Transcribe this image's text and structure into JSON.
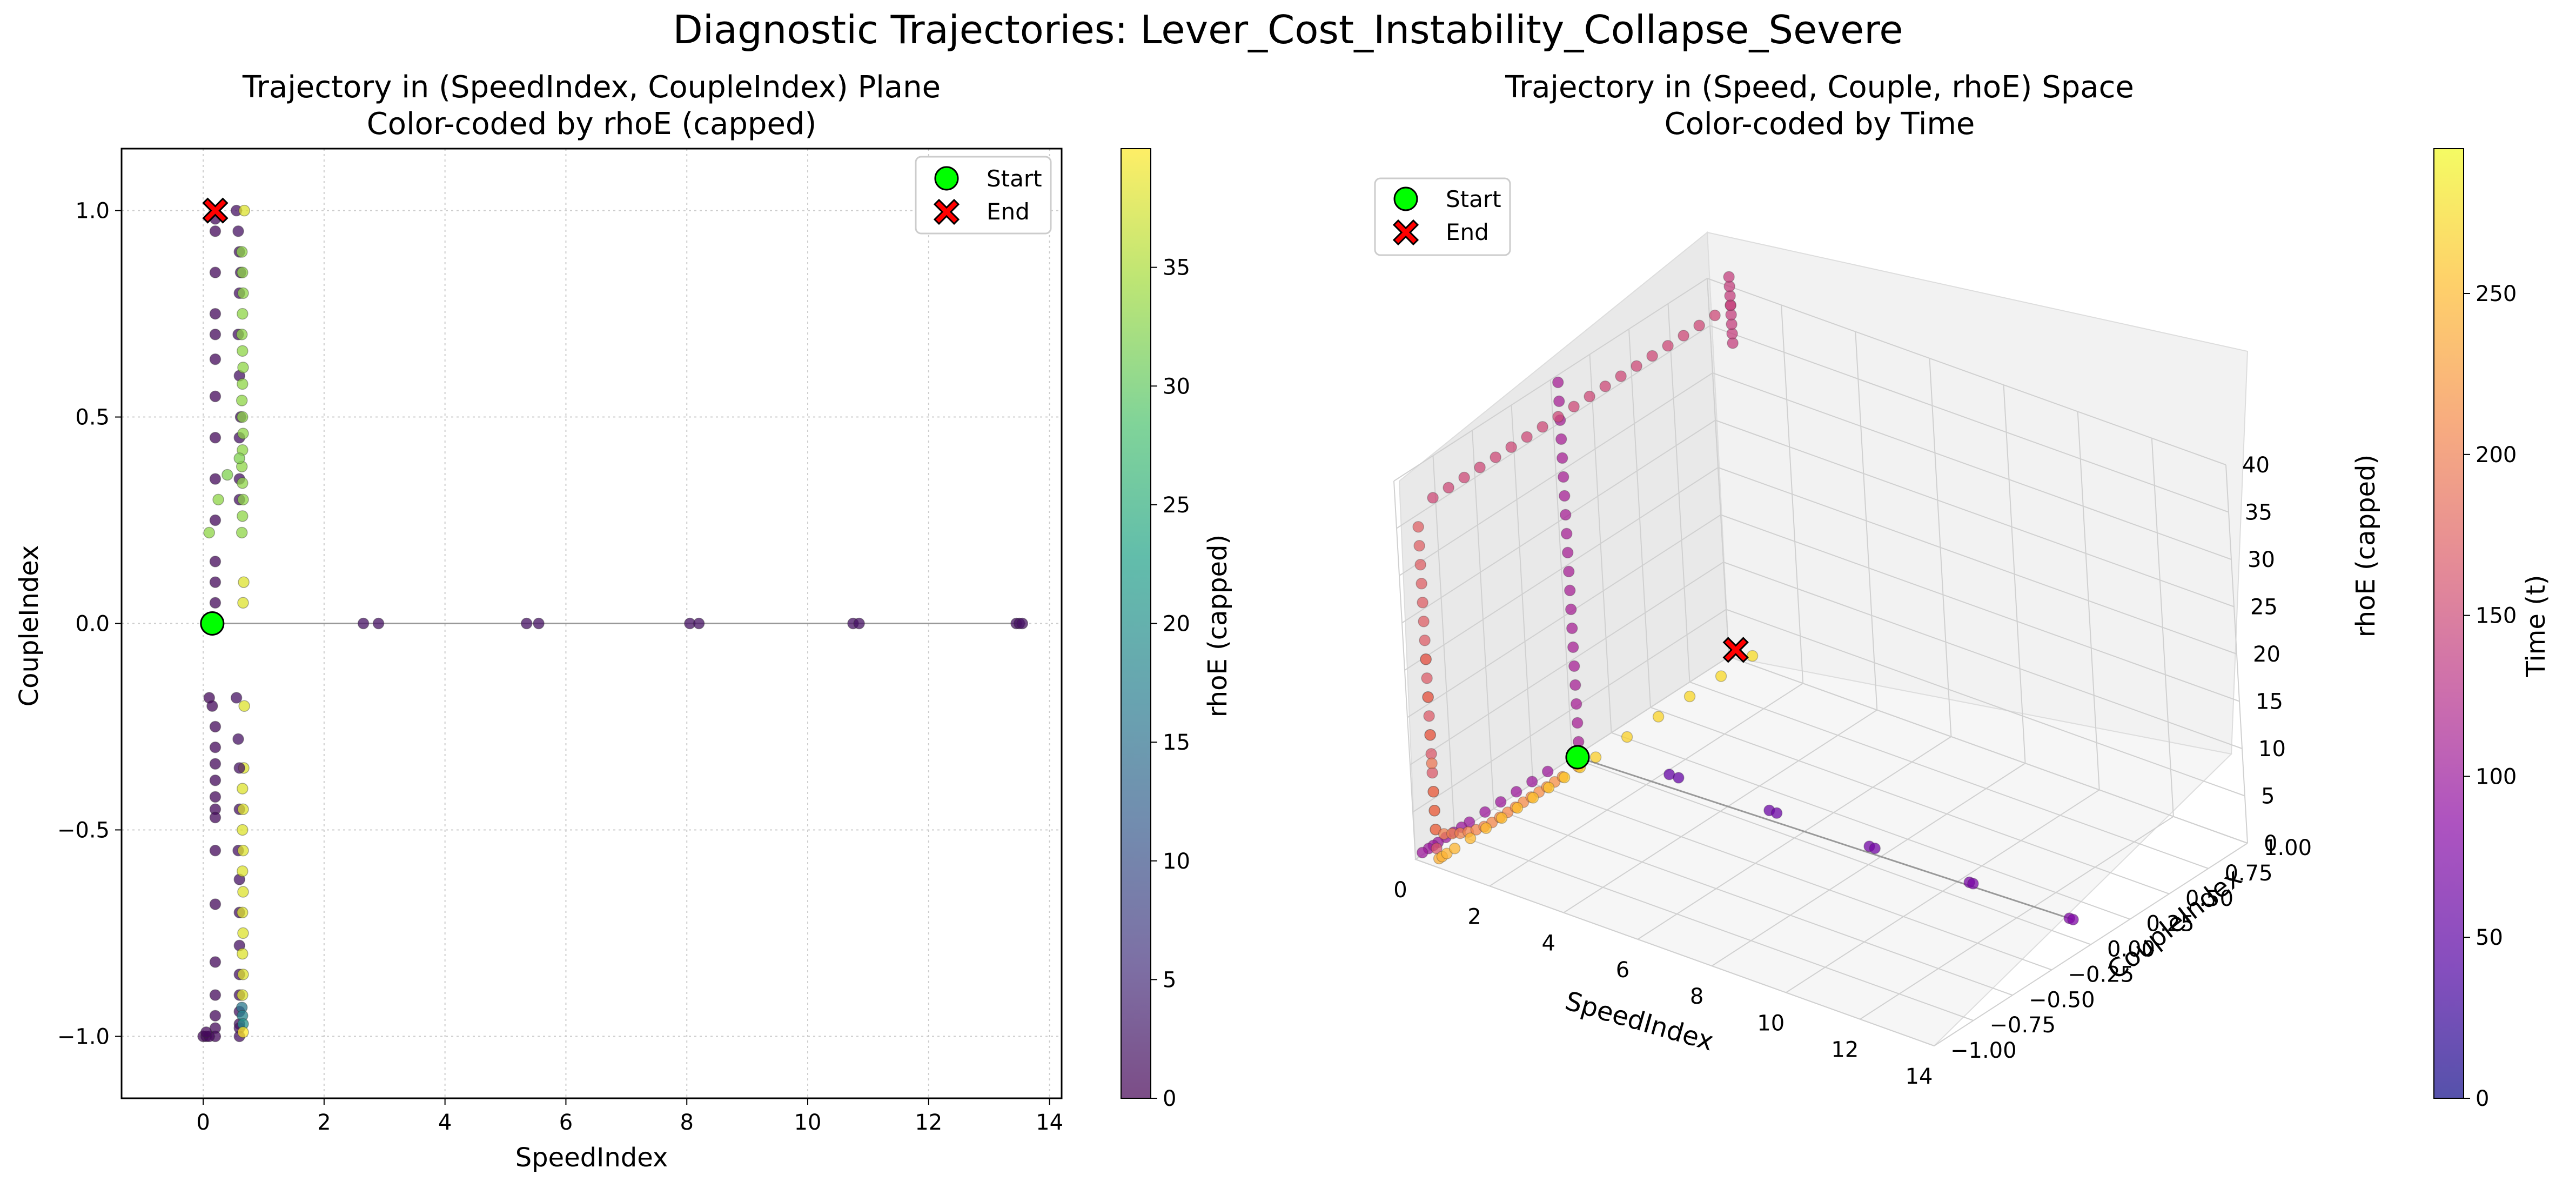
{
  "suptitle": "Diagnostic Trajectories: Lever_Cost_Instability_Collapse_Severe",
  "chart_data": [
    {
      "type": "scatter",
      "title": "Trajectory in (SpeedIndex, CoupleIndex) Plane",
      "subtitle": "Color-coded by rhoE (capped)",
      "xlabel": "SpeedIndex",
      "ylabel": "CoupleIndex",
      "xlim": [
        -1.35,
        14.2
      ],
      "ylim": [
        -1.15,
        1.15
      ],
      "xticks": [
        0,
        2,
        4,
        6,
        8,
        10,
        12,
        14
      ],
      "yticks": [
        -1.0,
        -0.5,
        0.0,
        0.5,
        1.0
      ],
      "grid": true,
      "colormap": "viridis",
      "colorbar": {
        "label": "rhoE (capped)",
        "range": [
          0,
          40
        ],
        "ticks": [
          0,
          5,
          10,
          15,
          20,
          25,
          30,
          35
        ]
      },
      "legend": {
        "placement": "top-right",
        "entries": [
          {
            "label": "Start",
            "marker": "circle",
            "color": "#00ff00"
          },
          {
            "label": "End",
            "marker": "x",
            "color": "#ff0000"
          }
        ]
      },
      "start": {
        "x": 0.15,
        "y": 0.0
      },
      "end": {
        "x": 0.2,
        "y": 1.0
      },
      "series": [
        {
          "x": [
            2.65,
            2.9,
            5.35,
            5.55,
            8.05,
            8.2,
            10.75,
            10.85,
            13.45,
            13.5,
            13.55
          ],
          "y": [
            0,
            0,
            0,
            0,
            0,
            0,
            0,
            0,
            0,
            0,
            0
          ],
          "rhoE": [
            2,
            2,
            2,
            2,
            2,
            2,
            2,
            2,
            2,
            2,
            2
          ]
        },
        {
          "x": [
            0.2,
            0.2,
            0.2,
            0.2,
            0.2,
            0.2,
            0.2,
            0.2,
            0.2,
            0.2,
            0.2,
            0.2,
            0.2
          ],
          "y": [
            0.95,
            0.85,
            0.75,
            0.7,
            0.64,
            0.55,
            0.45,
            0.35,
            0.25,
            0.15,
            0.1,
            0.05,
            0.98
          ],
          "rhoE": [
            1,
            1,
            1,
            1,
            1,
            1,
            1,
            1,
            1,
            1,
            1,
            1,
            1
          ]
        },
        {
          "x": [
            0.55,
            0.58,
            0.6,
            0.62,
            0.6,
            0.58,
            0.6,
            0.62,
            0.6,
            0.6,
            0.6
          ],
          "y": [
            1.0,
            0.95,
            0.9,
            0.85,
            0.8,
            0.7,
            0.6,
            0.5,
            0.45,
            0.35,
            0.3
          ],
          "rhoE": [
            2,
            2,
            2,
            2,
            2,
            2,
            2,
            2,
            2,
            2,
            2
          ]
        },
        {
          "x": [
            0.64,
            0.65,
            0.66,
            0.65,
            0.64,
            0.65,
            0.66,
            0.65,
            0.64,
            0.65,
            0.66,
            0.65,
            0.64,
            0.65,
            0.66,
            0.65,
            0.64
          ],
          "y": [
            0.9,
            0.85,
            0.8,
            0.75,
            0.7,
            0.66,
            0.62,
            0.58,
            0.54,
            0.5,
            0.46,
            0.42,
            0.38,
            0.34,
            0.3,
            0.26,
            0.22
          ],
          "rhoE": [
            33,
            33,
            33,
            33,
            33,
            33,
            33,
            33,
            33,
            33,
            33,
            33,
            33,
            33,
            33,
            33,
            33
          ]
        },
        {
          "x": [
            0.1,
            0.25,
            0.4,
            0.6
          ],
          "y": [
            0.22,
            0.3,
            0.36,
            0.4
          ],
          "rhoE": [
            33,
            33,
            32,
            32
          ]
        },
        {
          "x": [
            0.68,
            0.67,
            0.66,
            0.68,
            0.67
          ],
          "y": [
            1.0,
            0.1,
            0.05,
            -0.2,
            -0.35
          ],
          "rhoE": [
            38,
            38,
            38,
            38,
            38
          ]
        },
        {
          "x": [
            0.1,
            0.15,
            0.2,
            0.2,
            0.2,
            0.2,
            0.2,
            0.2,
            0.2,
            0.2,
            0.2,
            0.2,
            0.2,
            0.2,
            0.2,
            0.2
          ],
          "y": [
            -0.18,
            -0.2,
            -0.25,
            -0.3,
            -0.34,
            -0.38,
            -0.42,
            -0.45,
            -0.47,
            -0.55,
            -0.68,
            -0.82,
            -0.9,
            -0.95,
            -0.98,
            -1.0
          ],
          "rhoE": [
            1,
            1,
            1,
            1,
            1,
            1,
            1,
            1,
            1,
            1,
            1,
            1,
            1,
            1,
            1,
            1
          ]
        },
        {
          "x": [
            0.55,
            0.58,
            0.6,
            0.6,
            0.58,
            0.6,
            0.6,
            0.6,
            0.6,
            0.6,
            0.6,
            0.6,
            0.6,
            0.6
          ],
          "y": [
            -0.18,
            -0.28,
            -0.35,
            -0.45,
            -0.55,
            -0.62,
            -0.7,
            -0.78,
            -0.85,
            -0.9,
            -0.94,
            -0.97,
            -0.98,
            -1.0
          ],
          "rhoE": [
            2,
            2,
            2,
            2,
            2,
            2,
            2,
            2,
            2,
            2,
            2,
            2,
            2,
            2
          ]
        },
        {
          "x": [
            0.65,
            0.66,
            0.65,
            0.66,
            0.65,
            0.66,
            0.65,
            0.66,
            0.65,
            0.66,
            0.65
          ],
          "y": [
            -0.4,
            -0.45,
            -0.5,
            -0.55,
            -0.6,
            -0.65,
            -0.7,
            -0.75,
            -0.8,
            -0.85,
            -0.9
          ],
          "rhoE": [
            38,
            38,
            38,
            38,
            38,
            38,
            38,
            38,
            38,
            38,
            38
          ]
        },
        {
          "x": [
            0.64,
            0.65,
            0.66,
            0.66
          ],
          "y": [
            -0.93,
            -0.95,
            -0.97,
            -0.99
          ],
          "rhoE": [
            16,
            18,
            20,
            40
          ]
        },
        {
          "x": [
            0.0,
            0.05,
            0.1,
            0.05
          ],
          "y": [
            -1.0,
            -1.0,
            -1.0,
            -0.99
          ],
          "rhoE": [
            1,
            1,
            1,
            1
          ]
        }
      ]
    },
    {
      "type": "scatter",
      "title": "Trajectory in (Speed, Couple, rhoE) Space",
      "subtitle": "Color-coded by Time",
      "xlabel": "SpeedIndex",
      "ylabel": "CoupleIndex",
      "zlabel": "rhoE (capped)",
      "xlim": [
        0,
        14
      ],
      "ylim": [
        -1.0,
        1.0
      ],
      "zlim": [
        0,
        40
      ],
      "xticks": [
        0,
        2,
        4,
        6,
        8,
        10,
        12,
        14
      ],
      "yticks": [
        -1.0,
        -0.75,
        -0.5,
        -0.25,
        0.0,
        0.25,
        0.5,
        0.75,
        1.0
      ],
      "zticks": [
        0,
        5,
        10,
        15,
        20,
        25,
        30,
        35,
        40
      ],
      "grid": true,
      "colormap": "plasma",
      "colorbar": {
        "label": "Time (t)",
        "range": [
          0,
          295
        ],
        "ticks": [
          0,
          50,
          100,
          150,
          200,
          250
        ]
      },
      "legend": {
        "placement": "top-left",
        "entries": [
          {
            "label": "Start",
            "marker": "circle",
            "color": "#00ff00"
          },
          {
            "label": "End",
            "marker": "x",
            "color": "#ff0000"
          }
        ]
      },
      "start": {
        "x": 0.15,
        "y": 0.0,
        "z": 0.3
      },
      "end": {
        "x": 0.2,
        "y": 1.0,
        "z": 1.0
      },
      "series": [
        {
          "x": [
            2.65,
            2.9,
            5.35,
            5.55,
            8.05,
            8.2,
            10.75,
            10.85,
            13.45,
            13.55
          ],
          "y": [
            0,
            0,
            0,
            0,
            0,
            0,
            0,
            0,
            0,
            0
          ],
          "z": [
            2,
            2,
            2,
            2,
            2,
            2,
            2,
            2,
            2,
            2
          ],
          "t": [
            55,
            55,
            60,
            60,
            65,
            65,
            70,
            70,
            75,
            75
          ]
        },
        {
          "x": [
            0.2,
            0.2,
            0.2,
            0.2,
            0.2,
            0.2,
            0.2,
            0.2,
            0.2,
            0.2,
            0.2,
            0.2,
            0.2,
            0.2,
            0.2,
            0.2,
            0.2,
            0.2,
            0.2,
            0.2
          ],
          "y": [
            0,
            0,
            0,
            0,
            0,
            0,
            0,
            0,
            0,
            0,
            0,
            0,
            0,
            0,
            0,
            0,
            0,
            0,
            0,
            0
          ],
          "z": [
            2,
            4,
            6,
            8,
            10,
            12,
            14,
            16,
            18,
            20,
            22,
            24,
            26,
            28,
            30,
            32,
            34,
            36,
            38,
            40
          ],
          "t": [
            110,
            110,
            110,
            110,
            110,
            110,
            110,
            110,
            110,
            110,
            110,
            110,
            110,
            110,
            110,
            110,
            110,
            110,
            110,
            110
          ]
        },
        {
          "x": [
            0.2,
            0.2,
            0.2,
            0.2,
            0.2,
            0.2,
            0.2,
            0.2,
            0.2,
            0.2,
            0.2,
            0.2,
            0.2
          ],
          "y": [
            -0.2,
            -0.3,
            -0.4,
            -0.5,
            -0.6,
            -0.7,
            -0.75,
            -0.8,
            -0.85,
            -0.9,
            -0.93,
            -0.96,
            -1.0
          ],
          "z": [
            1,
            1,
            1,
            1,
            1,
            1,
            1,
            1,
            1,
            1,
            1,
            1,
            1
          ],
          "t": [
            100,
            100,
            100,
            100,
            100,
            100,
            100,
            100,
            100,
            100,
            100,
            100,
            100
          ]
        },
        {
          "x": [
            0.6,
            0.6,
            0.6,
            0.6,
            0.6,
            0.6,
            0.6,
            0.6,
            0.6,
            0.6,
            0.6,
            0.6,
            0.6,
            0.6,
            0.6,
            0.6,
            0.6,
            0.6
          ],
          "y": [
            -1.0,
            -1.0,
            -1.0,
            -1.0,
            -1.0,
            -1.0,
            -1.0,
            -1.0,
            -1.0,
            -1.0,
            -1.0,
            -1.0,
            -1.0,
            -1.0,
            -1.0,
            -1.0,
            -1.0,
            -1.0
          ],
          "z": [
            2,
            4,
            6,
            8,
            10,
            12,
            14,
            16,
            18,
            20,
            22,
            24,
            26,
            28,
            30,
            32,
            34,
            36
          ],
          "t": [
            165,
            165,
            166,
            166,
            167,
            167,
            168,
            168,
            169,
            169,
            170,
            170,
            171,
            171,
            172,
            172,
            173,
            173
          ]
        },
        {
          "x": [
            0.6,
            0.6,
            0.6,
            0.6,
            0.6,
            0.6,
            0.6,
            0.6,
            0.6,
            0.6,
            0.6,
            0.6,
            0.6,
            0.6,
            0.6,
            0.6,
            0.6,
            0.6,
            0.6,
            0.6
          ],
          "y": [
            -0.9,
            -0.8,
            -0.7,
            -0.6,
            -0.5,
            -0.4,
            -0.3,
            -0.2,
            -0.1,
            0.0,
            0.1,
            0.2,
            0.3,
            0.4,
            0.5,
            0.6,
            0.7,
            0.8,
            0.9,
            1.0
          ],
          "z": [
            38,
            38,
            38,
            38,
            38,
            38,
            38,
            38,
            38,
            38,
            38,
            38,
            38,
            38,
            38,
            38,
            38,
            38,
            38,
            38
          ],
          "t": [
            150,
            150,
            150,
            150,
            150,
            150,
            150,
            150,
            150,
            150,
            150,
            150,
            150,
            150,
            150,
            150,
            150,
            150,
            150,
            150
          ]
        },
        {
          "x": [
            0.6,
            0.6,
            0.6,
            0.6,
            0.6,
            0.6,
            0.6,
            0.6
          ],
          "y": [
            1.0,
            1.0,
            1.0,
            1.0,
            1.0,
            1.0,
            1.0,
            1.0
          ],
          "z": [
            34,
            35,
            36,
            37,
            38,
            39,
            40,
            41
          ],
          "t": [
            140,
            140,
            140,
            140,
            140,
            140,
            140,
            140
          ]
        },
        {
          "x": [
            0.6,
            0.6,
            0.6,
            0.6,
            0.6,
            0.6,
            0.6,
            0.6,
            0.6,
            0.6,
            0.6,
            0.6,
            0.6,
            0.6,
            0.6,
            0.6,
            0.6,
            0.6,
            0.6,
            0.6,
            0.6,
            0.6,
            0.6,
            0.6
          ],
          "y": [
            -1.0,
            -1.0,
            -1.0,
            -1.0,
            -1.0,
            -1.0,
            -1.0,
            -0.95,
            -0.9,
            -0.85,
            -0.8,
            -0.75,
            -0.7,
            -0.65,
            -0.6,
            -0.55,
            -0.5,
            -0.45,
            -0.4,
            -0.35,
            -0.3,
            -0.25,
            -0.2,
            -0.1
          ],
          "z": [
            22,
            18,
            14,
            11,
            8,
            6,
            4,
            3,
            2.5,
            2,
            1.6,
            1.3,
            1.1,
            1,
            1,
            1,
            1,
            1,
            1,
            1,
            1,
            1,
            1,
            1
          ],
          "t": [
            185,
            188,
            191,
            194,
            196,
            198,
            200,
            202,
            203,
            204,
            205,
            206,
            207,
            208,
            209,
            210,
            211,
            212,
            213,
            214,
            215,
            216,
            217,
            218
          ]
        },
        {
          "x": [
            0.65,
            0.65,
            0.65,
            0.65,
            0.65,
            0.65,
            0.65,
            0.65,
            0.65,
            0.65,
            0.65,
            0.65,
            0.65,
            0.65,
            0.65,
            0.65,
            0.65,
            0.65
          ],
          "y": [
            -1.0,
            -0.98,
            -0.95,
            -0.9,
            -0.8,
            -0.7,
            -0.6,
            -0.5,
            -0.4,
            -0.3,
            -0.2,
            -0.1,
            0.0,
            0.2,
            0.4,
            0.6,
            0.8,
            1.0
          ],
          "z": [
            1,
            1,
            1,
            1,
            1,
            1,
            1,
            1,
            1,
            1,
            1,
            1,
            1,
            1,
            1,
            1,
            1,
            1
          ],
          "t": [
            240,
            242,
            244,
            246,
            248,
            250,
            252,
            254,
            256,
            258,
            260,
            262,
            264,
            266,
            268,
            270,
            272,
            274
          ]
        }
      ]
    }
  ]
}
